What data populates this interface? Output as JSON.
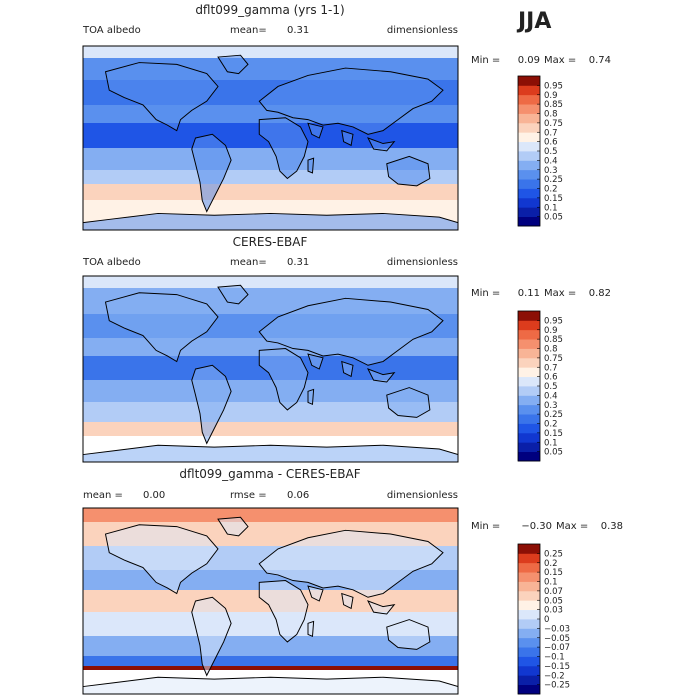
{
  "season": "JJA",
  "chart_data": [
    {
      "type": "heatmap",
      "title": "dflt099_gamma (yrs 1-1)",
      "header_left": "TOA albedo",
      "header_mid": "mean=",
      "header_mid_value": "0.31",
      "header_right": "dimensionless",
      "min_label": "Min =",
      "min_value": "0.09",
      "max_label": "Max =",
      "max_value": "0.74",
      "colorbar_levels": [
        "0.05",
        "0.1",
        "0.15",
        "0.2",
        "0.25",
        "0.3",
        "0.4",
        "0.5",
        "0.6",
        "0.7",
        "0.75",
        "0.8",
        "0.85",
        "0.9",
        "0.95"
      ],
      "colorbar_colors": [
        "#00007f",
        "#0a1fa8",
        "#1137d0",
        "#1f55e6",
        "#3a74ea",
        "#5a90ee",
        "#84aef2",
        "#b2ccf6",
        "#dbe7fa",
        "#fff2e6",
        "#fbd3bd",
        "#f8b496",
        "#f5906e",
        "#ee6a45",
        "#dc3c1d",
        "#8c0f05"
      ],
      "value_range": [
        0.0,
        1.0
      ]
    },
    {
      "type": "heatmap",
      "title": "CERES-EBAF",
      "header_left": "TOA albedo",
      "header_mid": "mean=",
      "header_mid_value": "0.31",
      "header_right": "dimensionless",
      "min_label": "Min =",
      "min_value": "0.11",
      "max_label": "Max =",
      "max_value": "0.82",
      "colorbar_levels": [
        "0.05",
        "0.1",
        "0.15",
        "0.2",
        "0.25",
        "0.3",
        "0.4",
        "0.5",
        "0.6",
        "0.7",
        "0.75",
        "0.8",
        "0.85",
        "0.9",
        "0.95"
      ],
      "colorbar_colors": [
        "#00007f",
        "#0a1fa8",
        "#1137d0",
        "#1f55e6",
        "#3a74ea",
        "#5a90ee",
        "#84aef2",
        "#b2ccf6",
        "#dbe7fa",
        "#fff2e6",
        "#fbd3bd",
        "#f8b496",
        "#f5906e",
        "#ee6a45",
        "#dc3c1d",
        "#8c0f05"
      ],
      "value_range": [
        0.0,
        1.0
      ]
    },
    {
      "type": "heatmap",
      "title": "dflt099_gamma - CERES-EBAF",
      "header_left": "mean =",
      "header_left_value": "0.00",
      "header_mid": "rmse =",
      "header_mid_value": "0.06",
      "header_right": "dimensionless",
      "min_label": "Min =",
      "min_value": "−0.30",
      "max_label": "Max =",
      "max_value": "0.38",
      "colorbar_levels": [
        "−0.25",
        "−0.2",
        "−0.15",
        "−0.1",
        "−0.07",
        "−0.05",
        "−0.03",
        "0",
        "0.03",
        "0.05",
        "0.07",
        "0.1",
        "0.15",
        "0.2",
        "0.25"
      ],
      "colorbar_colors": [
        "#00007f",
        "#0a1fa8",
        "#1137d0",
        "#1f55e6",
        "#3a74ea",
        "#5a90ee",
        "#84aef2",
        "#b2ccf6",
        "#dbe7fa",
        "#fff2e6",
        "#fbd3bd",
        "#f8b496",
        "#f5906e",
        "#ee6a45",
        "#dc3c1d",
        "#8c0f05"
      ],
      "value_range": [
        -0.3,
        0.3
      ]
    }
  ]
}
